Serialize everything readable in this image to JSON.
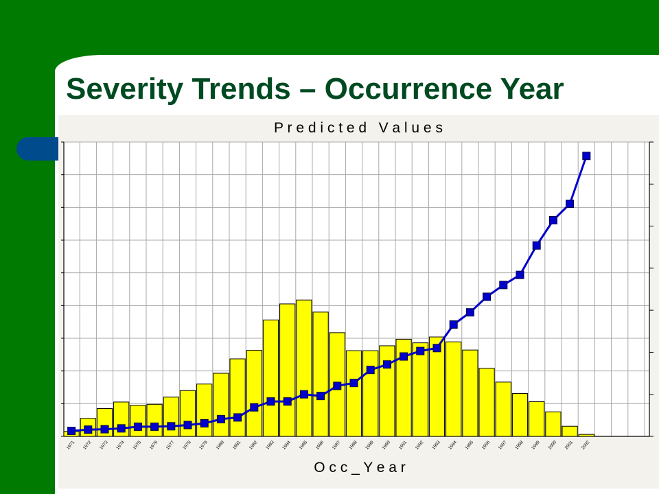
{
  "slide": {
    "title": "Severity Trends – Occurrence Year"
  },
  "colors": {
    "background_green": "#007a00",
    "title_green": "#004a22",
    "accent_pill": "#004b8c",
    "panel": "#f4f2ed",
    "bar_fill": "#ffff00",
    "line_blue": "#0000cc"
  },
  "chart_data": {
    "type": "bar",
    "title": "P r e d i c t e d   V a l u e s",
    "xlabel": "O c c _ Y e a r",
    "ylabel": "",
    "categories": [
      "1971",
      "1972",
      "1973",
      "1974",
      "1975",
      "1976",
      "1977",
      "1978",
      "1979",
      "1980",
      "1981",
      "1982",
      "1983",
      "1984",
      "1985",
      "1986",
      "1987",
      "1988",
      "1989",
      "1990",
      "1991",
      "1992",
      "1993",
      "1994",
      "1995",
      "1996",
      "1997",
      "1998",
      "1999",
      "2000",
      "2001",
      "2002"
    ],
    "ylim_left": [
      0,
      9
    ],
    "ylim_right": [
      0,
      7
    ],
    "grid": true,
    "series": [
      {
        "kind": "bar",
        "axis": "left",
        "color": "#ffff00",
        "values": [
          0.15,
          0.55,
          0.85,
          1.05,
          0.95,
          0.98,
          1.2,
          1.4,
          1.6,
          1.93,
          2.37,
          2.63,
          3.56,
          4.05,
          4.17,
          3.8,
          3.17,
          2.62,
          2.62,
          2.77,
          2.97,
          2.86,
          3.04,
          2.89,
          2.64,
          2.08,
          1.66,
          1.31,
          1.06,
          0.75,
          0.31,
          0.06
        ]
      },
      {
        "kind": "line",
        "axis": "right",
        "marker": "square",
        "color": "#0000cc",
        "values": [
          0.13,
          0.16,
          0.17,
          0.19,
          0.23,
          0.23,
          0.24,
          0.27,
          0.31,
          0.41,
          0.45,
          0.69,
          0.83,
          0.83,
          1.0,
          0.96,
          1.2,
          1.27,
          1.58,
          1.71,
          1.9,
          2.03,
          2.1,
          2.66,
          2.95,
          3.32,
          3.6,
          3.84,
          4.54,
          5.14,
          5.53,
          6.67
        ]
      }
    ]
  }
}
